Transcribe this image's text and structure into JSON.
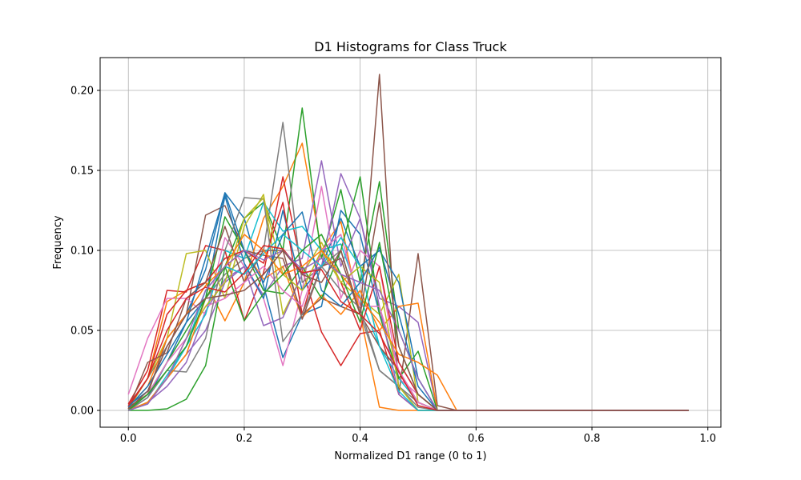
{
  "chart_data": {
    "type": "line",
    "title": "D1 Histograms for Class Truck",
    "xlabel": "Normalized D1 range (0 to 1)",
    "ylabel": "Frequency",
    "xlim": [
      -0.0487,
      1.0225
    ],
    "ylim": [
      -0.0105,
      0.2205
    ],
    "xticks": [
      0.0,
      0.2,
      0.4,
      0.6,
      0.8,
      1.0
    ],
    "xtick_labels": [
      "0.0",
      "0.2",
      "0.4",
      "0.6",
      "0.8",
      "1.0"
    ],
    "yticks": [
      0.0,
      0.05,
      0.1,
      0.15,
      0.2
    ],
    "ytick_labels": [
      "0.00",
      "0.05",
      "0.10",
      "0.15",
      "0.20"
    ],
    "grid": true,
    "x": [
      0.0,
      0.0333,
      0.0667,
      0.1,
      0.1333,
      0.1667,
      0.2,
      0.2333,
      0.2667,
      0.3,
      0.3333,
      0.3667,
      0.4,
      0.4333,
      0.4667,
      0.5,
      0.5333,
      0.5667,
      0.6,
      0.6333,
      0.6667,
      0.7,
      0.7333,
      0.7667,
      0.8,
      0.8333,
      0.8667,
      0.9,
      0.9333,
      0.9667
    ],
    "series": [
      {
        "color": "#1f77b4",
        "values": [
          0.003,
          0.012,
          0.04,
          0.06,
          0.088,
          0.136,
          0.12,
          0.078,
          0.033,
          0.06,
          0.065,
          0.125,
          0.11,
          0.06,
          0.03,
          0.01,
          0.0,
          0,
          0,
          0,
          0,
          0,
          0,
          0,
          0,
          0,
          0,
          0,
          0,
          0
        ]
      },
      {
        "color": "#ff7f0e",
        "values": [
          0.002,
          0.02,
          0.068,
          0.075,
          0.08,
          0.056,
          0.08,
          0.12,
          0.14,
          0.167,
          0.1,
          0.118,
          0.06,
          0.002,
          0.0,
          0.0,
          0.0,
          0,
          0,
          0,
          0,
          0,
          0,
          0,
          0,
          0,
          0,
          0,
          0,
          0
        ]
      },
      {
        "color": "#2ca02c",
        "values": [
          0.0,
          0.0,
          0.001,
          0.007,
          0.028,
          0.09,
          0.12,
          0.13,
          0.1,
          0.189,
          0.095,
          0.138,
          0.08,
          0.143,
          0.05,
          0.02,
          0.0,
          0,
          0,
          0,
          0,
          0,
          0,
          0,
          0,
          0,
          0,
          0,
          0,
          0
        ]
      },
      {
        "color": "#d62728",
        "values": [
          0.004,
          0.025,
          0.075,
          0.074,
          0.103,
          0.1,
          0.056,
          0.086,
          0.146,
          0.088,
          0.049,
          0.028,
          0.048,
          0.05,
          0.01,
          0.0,
          0.0,
          0,
          0,
          0,
          0,
          0,
          0,
          0,
          0,
          0,
          0,
          0,
          0,
          0
        ]
      },
      {
        "color": "#9467bd",
        "values": [
          0.0,
          0.005,
          0.015,
          0.03,
          0.062,
          0.082,
          0.09,
          0.072,
          0.09,
          0.095,
          0.156,
          0.09,
          0.12,
          0.07,
          0.065,
          0.055,
          0.0,
          0,
          0,
          0,
          0,
          0,
          0,
          0,
          0,
          0,
          0,
          0,
          0,
          0
        ]
      },
      {
        "color": "#8c564b",
        "values": [
          0.002,
          0.01,
          0.045,
          0.06,
          0.122,
          0.128,
          0.1,
          0.097,
          0.095,
          0.06,
          0.07,
          0.065,
          0.06,
          0.21,
          0.01,
          0.098,
          0.003,
          0,
          0,
          0,
          0,
          0,
          0,
          0,
          0,
          0,
          0,
          0,
          0,
          0
        ]
      },
      {
        "color": "#e377c2",
        "values": [
          0.01,
          0.045,
          0.07,
          0.07,
          0.06,
          0.108,
          0.09,
          0.07,
          0.028,
          0.075,
          0.14,
          0.07,
          0.1,
          0.09,
          0.02,
          0.01,
          0.0,
          0,
          0,
          0,
          0,
          0,
          0,
          0,
          0,
          0,
          0,
          0,
          0,
          0
        ]
      },
      {
        "color": "#7f7f7f",
        "values": [
          0.003,
          0.02,
          0.04,
          0.06,
          0.07,
          0.085,
          0.095,
          0.1,
          0.18,
          0.08,
          0.09,
          0.1,
          0.06,
          0.025,
          0.015,
          0.005,
          0.0,
          0,
          0,
          0,
          0,
          0,
          0,
          0,
          0,
          0,
          0,
          0,
          0,
          0
        ]
      },
      {
        "color": "#bcbd22",
        "values": [
          0.001,
          0.02,
          0.045,
          0.098,
          0.1,
          0.07,
          0.115,
          0.135,
          0.06,
          0.085,
          0.105,
          0.08,
          0.07,
          0.06,
          0.085,
          0.005,
          0.0,
          0,
          0,
          0,
          0,
          0,
          0,
          0,
          0,
          0,
          0,
          0,
          0,
          0
        ]
      },
      {
        "color": "#17becf",
        "values": [
          0.0,
          0.005,
          0.02,
          0.04,
          0.06,
          0.1,
          0.095,
          0.13,
          0.112,
          0.115,
          0.1,
          0.104,
          0.07,
          0.04,
          0.02,
          0.005,
          0.0,
          0,
          0,
          0,
          0,
          0,
          0,
          0,
          0,
          0,
          0,
          0,
          0,
          0
        ]
      },
      {
        "color": "#1f77b4",
        "values": [
          0.0,
          0.008,
          0.03,
          0.055,
          0.07,
          0.134,
          0.092,
          0.07,
          0.125,
          0.075,
          0.09,
          0.12,
          0.09,
          0.1,
          0.08,
          0.02,
          0.0,
          0,
          0,
          0,
          0,
          0,
          0,
          0,
          0,
          0,
          0,
          0,
          0,
          0
        ]
      },
      {
        "color": "#ff7f0e",
        "values": [
          0.002,
          0.015,
          0.045,
          0.06,
          0.078,
          0.09,
          0.1,
          0.082,
          0.09,
          0.058,
          0.072,
          0.06,
          0.075,
          0.05,
          0.065,
          0.067,
          0.0,
          0,
          0,
          0,
          0,
          0,
          0,
          0,
          0,
          0,
          0,
          0,
          0,
          0
        ]
      },
      {
        "color": "#2ca02c",
        "values": [
          0.001,
          0.01,
          0.03,
          0.05,
          0.07,
          0.121,
          0.1,
          0.075,
          0.073,
          0.09,
          0.07,
          0.1,
          0.146,
          0.06,
          0.02,
          0.037,
          0.0,
          0,
          0,
          0,
          0,
          0,
          0,
          0,
          0,
          0,
          0,
          0,
          0,
          0
        ]
      },
      {
        "color": "#d62728",
        "values": [
          0.002,
          0.02,
          0.06,
          0.075,
          0.08,
          0.095,
          0.1,
          0.092,
          0.13,
          0.06,
          0.1,
          0.08,
          0.05,
          0.09,
          0.03,
          0.01,
          0.0,
          0,
          0,
          0,
          0,
          0,
          0,
          0,
          0,
          0,
          0,
          0,
          0,
          0
        ]
      },
      {
        "color": "#9467bd",
        "values": [
          0.0,
          0.005,
          0.02,
          0.035,
          0.05,
          0.08,
          0.09,
          0.053,
          0.058,
          0.085,
          0.09,
          0.148,
          0.12,
          0.065,
          0.01,
          0.0,
          0.0,
          0,
          0,
          0,
          0,
          0,
          0,
          0,
          0,
          0,
          0,
          0,
          0,
          0
        ]
      },
      {
        "color": "#8c564b",
        "values": [
          0.001,
          0.03,
          0.036,
          0.07,
          0.08,
          0.115,
          0.08,
          0.1,
          0.1,
          0.057,
          0.09,
          0.095,
          0.06,
          0.04,
          0.025,
          0.005,
          0.0,
          0,
          0,
          0,
          0,
          0,
          0,
          0,
          0,
          0,
          0,
          0,
          0,
          0
        ]
      },
      {
        "color": "#e377c2",
        "values": [
          0.0,
          0.01,
          0.03,
          0.045,
          0.065,
          0.07,
          0.08,
          0.09,
          0.075,
          0.065,
          0.1,
          0.11,
          0.065,
          0.065,
          0.025,
          0.005,
          0.0,
          0,
          0,
          0,
          0,
          0,
          0,
          0,
          0,
          0,
          0,
          0,
          0,
          0
        ]
      },
      {
        "color": "#7f7f7f",
        "values": [
          0.0,
          0.008,
          0.025,
          0.024,
          0.045,
          0.1,
          0.133,
          0.132,
          0.043,
          0.06,
          0.09,
          0.075,
          0.064,
          0.025,
          0.015,
          0.002,
          0.0,
          0,
          0,
          0,
          0,
          0,
          0,
          0,
          0,
          0,
          0,
          0,
          0,
          0
        ]
      },
      {
        "color": "#bcbd22",
        "values": [
          0.0,
          0.005,
          0.02,
          0.045,
          0.065,
          0.08,
          0.12,
          0.133,
          0.085,
          0.075,
          0.1,
          0.08,
          0.09,
          0.08,
          0.015,
          0.0,
          0.0,
          0,
          0,
          0,
          0,
          0,
          0,
          0,
          0,
          0,
          0,
          0,
          0,
          0
        ]
      },
      {
        "color": "#17becf",
        "values": [
          0.0,
          0.004,
          0.022,
          0.04,
          0.075,
          0.09,
          0.085,
          0.098,
          0.11,
          0.1,
          0.09,
          0.108,
          0.09,
          0.04,
          0.012,
          0.0,
          0.0,
          0,
          0,
          0,
          0,
          0,
          0,
          0,
          0,
          0,
          0,
          0,
          0,
          0
        ]
      },
      {
        "color": "#1f77b4",
        "values": [
          0.002,
          0.015,
          0.035,
          0.055,
          0.095,
          0.136,
          0.1,
          0.08,
          0.11,
          0.124,
          0.075,
          0.065,
          0.08,
          0.102,
          0.06,
          0.015,
          0.0,
          0,
          0,
          0,
          0,
          0,
          0,
          0,
          0,
          0,
          0,
          0,
          0,
          0
        ]
      },
      {
        "color": "#ff7f0e",
        "values": [
          0.0,
          0.005,
          0.02,
          0.035,
          0.07,
          0.09,
          0.11,
          0.1,
          0.085,
          0.09,
          0.1,
          0.085,
          0.07,
          0.055,
          0.035,
          0.03,
          0.022,
          0,
          0,
          0,
          0,
          0,
          0,
          0,
          0,
          0,
          0,
          0,
          0,
          0
        ]
      },
      {
        "color": "#2ca02c",
        "values": [
          0.0,
          0.01,
          0.025,
          0.04,
          0.07,
          0.09,
          0.056,
          0.073,
          0.085,
          0.1,
          0.11,
          0.085,
          0.055,
          0.105,
          0.04,
          0.01,
          0.0,
          0,
          0,
          0,
          0,
          0,
          0,
          0,
          0,
          0,
          0,
          0,
          0,
          0
        ]
      },
      {
        "color": "#d62728",
        "values": [
          0.003,
          0.02,
          0.05,
          0.07,
          0.077,
          0.074,
          0.086,
          0.103,
          0.101,
          0.086,
          0.088,
          0.068,
          0.06,
          0.048,
          0.024,
          0.003,
          0.0,
          0,
          0,
          0,
          0,
          0,
          0,
          0,
          0,
          0,
          0,
          0,
          0,
          0
        ]
      },
      {
        "color": "#9467bd",
        "values": [
          0.0,
          0.004,
          0.02,
          0.045,
          0.075,
          0.09,
          0.1,
          0.094,
          0.1,
          0.088,
          0.095,
          0.085,
          0.08,
          0.075,
          0.05,
          0.02,
          0.0,
          0,
          0,
          0,
          0,
          0,
          0,
          0,
          0,
          0,
          0,
          0,
          0,
          0
        ]
      },
      {
        "color": "#8c564b",
        "values": [
          0.001,
          0.012,
          0.04,
          0.06,
          0.07,
          0.072,
          0.075,
          0.085,
          0.1,
          0.085,
          0.08,
          0.1,
          0.06,
          0.13,
          0.04,
          0.01,
          0.0,
          0.0,
          0,
          0,
          0,
          0,
          0,
          0,
          0,
          0,
          0,
          0,
          0,
          0
        ]
      }
    ]
  }
}
